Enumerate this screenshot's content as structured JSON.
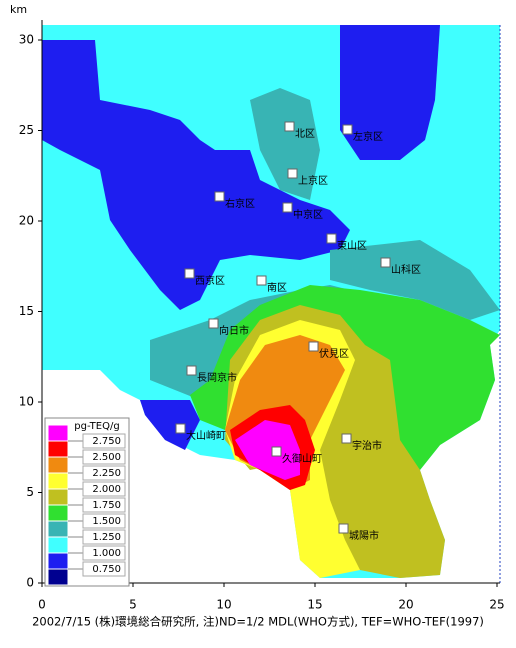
{
  "map": {
    "axis_unit": "km",
    "xlim": [
      0,
      25
    ],
    "xticks": [
      0,
      5,
      10,
      15,
      20,
      25
    ],
    "ylim": [
      0,
      30
    ],
    "yticks": [
      0,
      5,
      10,
      15,
      20,
      25,
      30
    ],
    "legend": {
      "title": "pg-TEQ/g",
      "colors": [
        "#ff00ff",
        "#ff0000",
        "#f08a10",
        "#ffff30",
        "#c0c020",
        "#30e030",
        "#38b4b4",
        "#40ffff",
        "#1e1ef0",
        "#000090"
      ],
      "thresholds": [
        {
          "value": 2.75,
          "label": "2.750"
        },
        {
          "value": 2.5,
          "label": "2.500"
        },
        {
          "value": 2.25,
          "label": "2.250"
        },
        {
          "value": 2,
          "label": "2.000"
        },
        {
          "value": 1.75,
          "label": "1.750"
        },
        {
          "value": 1.5,
          "label": "1.500"
        },
        {
          "value": 1.25,
          "label": "1.250"
        },
        {
          "value": 1,
          "label": "1.000"
        },
        {
          "value": 0.75,
          "label": "0.750"
        }
      ]
    },
    "places": [
      "北区",
      "左京区",
      "上京区",
      "右京区",
      "中京区",
      "東山区",
      "山科区",
      "南区",
      "西京区",
      "向日市",
      "伏見区",
      "長岡京市",
      "大山崎町",
      "宇治市",
      "久御山町",
      "城陽市"
    ],
    "caption": "2002/7/15 (株)環境総合研究所, 注)ND=1/2 MDL(WHO方式), TEF=WHO-TEF(1997)"
  }
}
